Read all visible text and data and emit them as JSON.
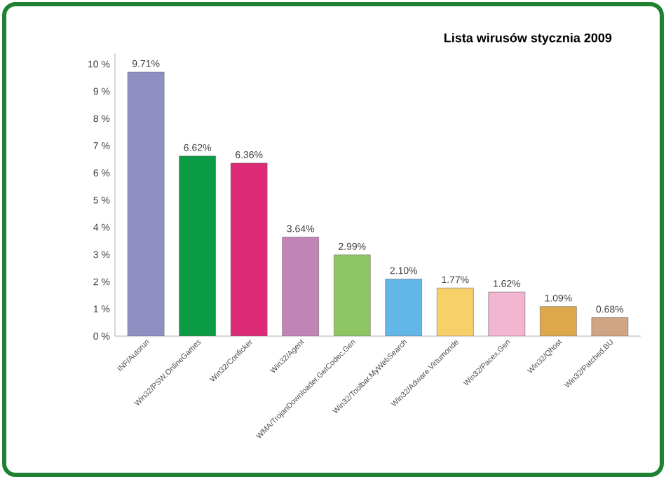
{
  "chart_data": {
    "type": "bar",
    "title": "Lista wirusów stycznia 2009",
    "categories": [
      "INF/Autorun",
      "Win32/PSW.OnlineGames",
      "Win32/Conficker",
      "Win32/Agent",
      "WMA/TrojanDownloader.GetCodec.Gen",
      "Win32/Toolbar.MyWebSearch",
      "Win32/Adware.Virtumonde",
      "Win32/Pacex.Gen",
      "Win32/Qhost",
      "Win32/Patched.BU"
    ],
    "values": [
      9.71,
      6.62,
      6.36,
      3.64,
      2.99,
      2.1,
      1.77,
      1.62,
      1.09,
      0.68
    ],
    "value_labels": [
      "9.71%",
      "6.62%",
      "6.36%",
      "3.64%",
      "2.99%",
      "2.10%",
      "1.77%",
      "1.62%",
      "1.09%",
      "0.68%"
    ],
    "colors": [
      "#8f8fc4",
      "#0b9b45",
      "#dd2a75",
      "#c283b6",
      "#8ec663",
      "#62b6e8",
      "#f8d06a",
      "#f3b5d0",
      "#dca84a",
      "#d0a584"
    ],
    "ylim": [
      0,
      10.4
    ],
    "yticks": [
      {
        "value": 0,
        "label": "0 %"
      },
      {
        "value": 1,
        "label": "1 %"
      },
      {
        "value": 2,
        "label": "2 %"
      },
      {
        "value": 3,
        "label": "3 %"
      },
      {
        "value": 4,
        "label": "4 %"
      },
      {
        "value": 5,
        "label": "5 %"
      },
      {
        "value": 6,
        "label": "6 %"
      },
      {
        "value": 7,
        "label": "7 %"
      },
      {
        "value": 8,
        "label": "8 %"
      },
      {
        "value": 9,
        "label": "9 %"
      },
      {
        "value": 10,
        "label": "10 %"
      }
    ],
    "grid": false
  }
}
